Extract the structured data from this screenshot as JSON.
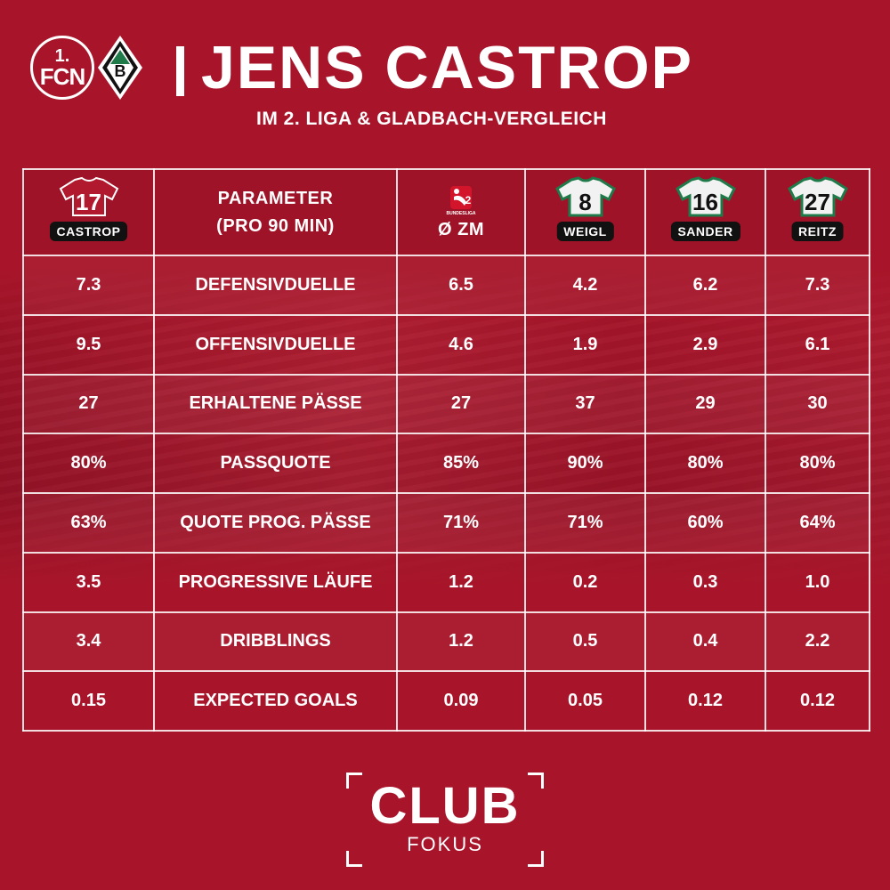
{
  "header": {
    "club_logo_line1": "1.",
    "club_logo_line2": "FCN",
    "opponent_logo_letter": "B",
    "title": "JENS CASTROP",
    "subtitle": "IM 2. LIGA & GLADBACH-VERGLEICH"
  },
  "table": {
    "columns": [
      {
        "kind": "player",
        "number": "17",
        "name": "CASTROP",
        "jersey": "red"
      },
      {
        "kind": "param",
        "line1": "PARAMETER",
        "line2": "(PRO 90 MIN)"
      },
      {
        "kind": "league",
        "logo_text": "BUNDESLIGA",
        "logo_num": "2",
        "label": "Ø ZM"
      },
      {
        "kind": "player",
        "number": "8",
        "name": "WEIGL",
        "jersey": "white"
      },
      {
        "kind": "player",
        "number": "16",
        "name": "SANDER",
        "jersey": "white"
      },
      {
        "kind": "player",
        "number": "27",
        "name": "REITZ",
        "jersey": "white"
      }
    ],
    "rows": [
      {
        "param": "DEFENSIVDUELLE",
        "values": [
          "7.3",
          "6.5",
          "4.2",
          "6.2",
          "7.3"
        ]
      },
      {
        "param": "OFFENSIVDUELLE",
        "values": [
          "9.5",
          "4.6",
          "1.9",
          "2.9",
          "6.1"
        ]
      },
      {
        "param": "ERHALTENE PÄSSE",
        "values": [
          "27",
          "27",
          "37",
          "29",
          "30"
        ]
      },
      {
        "param": "PASSQUOTE",
        "values": [
          "80%",
          "85%",
          "90%",
          "80%",
          "80%"
        ]
      },
      {
        "param": "QUOTE PROG. PÄSSE",
        "values": [
          "63%",
          "71%",
          "71%",
          "60%",
          "64%"
        ]
      },
      {
        "param": "PROGRESSIVE LÄUFE",
        "values": [
          "3.5",
          "1.2",
          "0.2",
          "0.3",
          "1.0"
        ]
      },
      {
        "param": "DRIBBLINGS",
        "values": [
          "3.4",
          "1.2",
          "0.5",
          "0.4",
          "2.2"
        ]
      },
      {
        "param": "EXPECTED GOALS",
        "values": [
          "0.15",
          "0.09",
          "0.05",
          "0.12",
          "0.12"
        ]
      }
    ]
  },
  "footer": {
    "brand_main": "CLUB",
    "brand_sub": "FOKUS"
  },
  "colors": {
    "background": "#a8152a",
    "badge": "#111111",
    "jersey_white_trim": "#1f7a4a"
  }
}
